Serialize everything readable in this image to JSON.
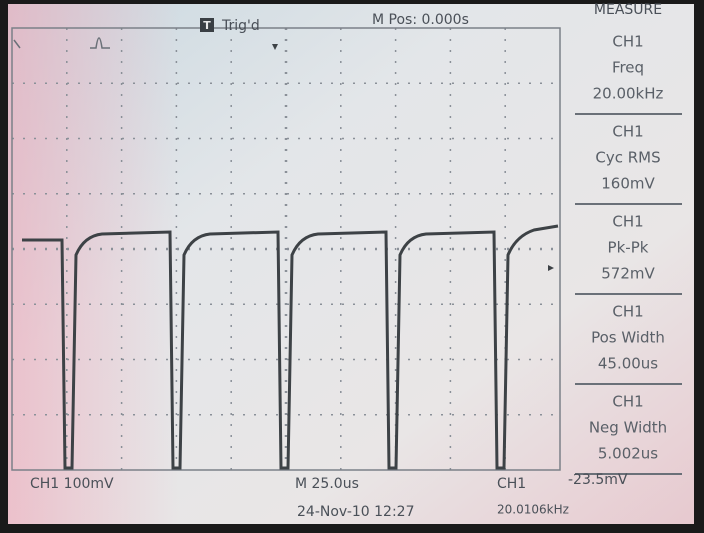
{
  "header": {
    "trigger_icon": "T",
    "trigger_status": "Trig'd",
    "position": "M Pos: 0.000s",
    "menu_title": "MEASURE"
  },
  "measurements": [
    {
      "channel": "CH1",
      "label": "Freq",
      "value": "20.00kHz"
    },
    {
      "channel": "CH1",
      "label": "Cyc RMS",
      "value": "160mV"
    },
    {
      "channel": "CH1",
      "label": "Pk-Pk",
      "value": "572mV"
    },
    {
      "channel": "CH1",
      "label": "Pos Width",
      "value": "45.00us"
    },
    {
      "channel": "CH1",
      "label": "Neg Width",
      "value": "5.002us"
    }
  ],
  "footer": {
    "channel_scale": "CH1 100mV",
    "time_scale": "M 25.0us",
    "trigger_channel": "CH1",
    "trigger_level": "-23.5mV",
    "datetime": "24-Nov-10 12:27",
    "trigger_freq": "20.0106kHz"
  }
}
